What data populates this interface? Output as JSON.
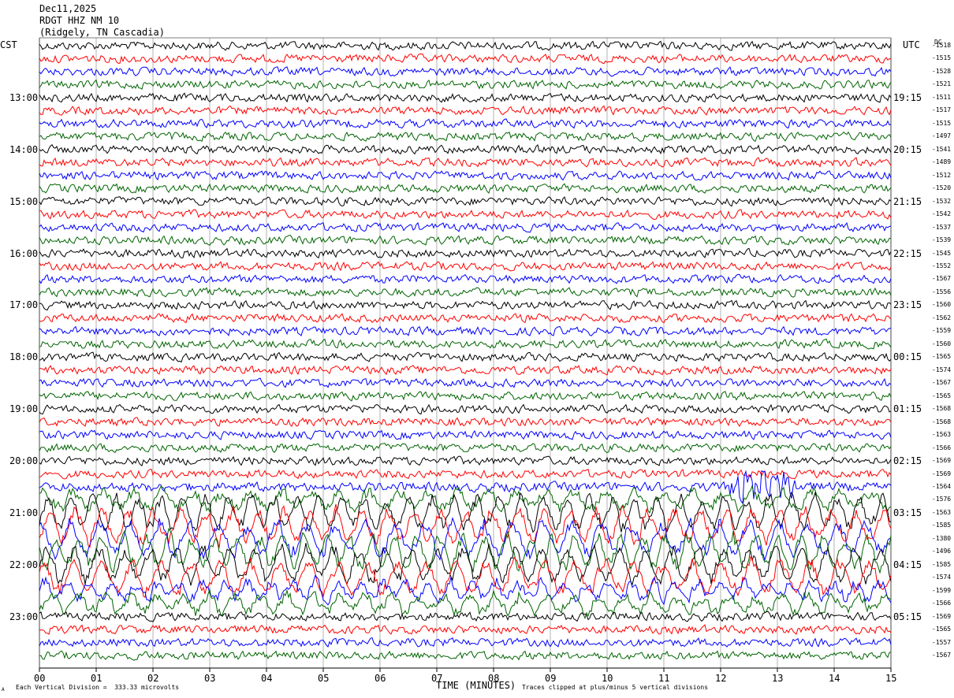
{
  "header": {
    "date": "Dec11,2025",
    "station": "RDGT HHZ NM 10",
    "location": "(Ridgely, TN Cascadia)"
  },
  "left_axis_title": "CST",
  "right_axis_title": "UTC",
  "dc_title": "DC",
  "footer": {
    "vertical_division": "Each Vertical Division =  333.33 microvolts",
    "xlabel": "TIME (MINUTES)",
    "clip_note": "Traces clipped at plus/minus 5 vertical divisions",
    "corner_mark": "A"
  },
  "colors": {
    "trace_cycle": [
      "#000000",
      "#ff0000",
      "#0000ff",
      "#006400"
    ],
    "grid": "#808080"
  },
  "chart_data": {
    "type": "line",
    "subtype": "helicorder",
    "xlabel": "TIME (MINUTES)",
    "xlim": [
      0,
      15
    ],
    "x_tick_labels": [
      "00",
      "01",
      "02",
      "03",
      "04",
      "05",
      "06",
      "07",
      "08",
      "09",
      "10",
      "11",
      "12",
      "13",
      "14",
      "15"
    ],
    "left_time_labels": [
      "13:00",
      "14:00",
      "15:00",
      "16:00",
      "17:00",
      "18:00",
      "19:00",
      "20:00",
      "21:00",
      "22:00",
      "23:00"
    ],
    "right_time_labels": [
      "19:15",
      "20:15",
      "21:15",
      "22:15",
      "23:15",
      "00:15",
      "01:15",
      "02:15",
      "03:15",
      "04:15",
      "05:15"
    ],
    "trace_dc_offsets": [
      -1518,
      -1515,
      -1528,
      -1521,
      -1511,
      -1517,
      -1515,
      -1497,
      -1541,
      -1489,
      -1512,
      -1520,
      -1532,
      -1542,
      -1537,
      -1539,
      -1545,
      -1552,
      -1567,
      -1556,
      -1560,
      -1562,
      -1559,
      -1560,
      -1565,
      -1574,
      -1567,
      -1565,
      -1568,
      -1568,
      -1563,
      -1566,
      -1569,
      -1569,
      -1564,
      -1576,
      -1563,
      -1585,
      -1380,
      -1496,
      -1585,
      -1574,
      -1599,
      -1566,
      -1569,
      -1565,
      -1557,
      -1567
    ],
    "traces_per_hour": 4,
    "minutes_per_trace": 15,
    "clip_divisions": 5,
    "microvolts_per_division": 333.33,
    "grid": true
  }
}
